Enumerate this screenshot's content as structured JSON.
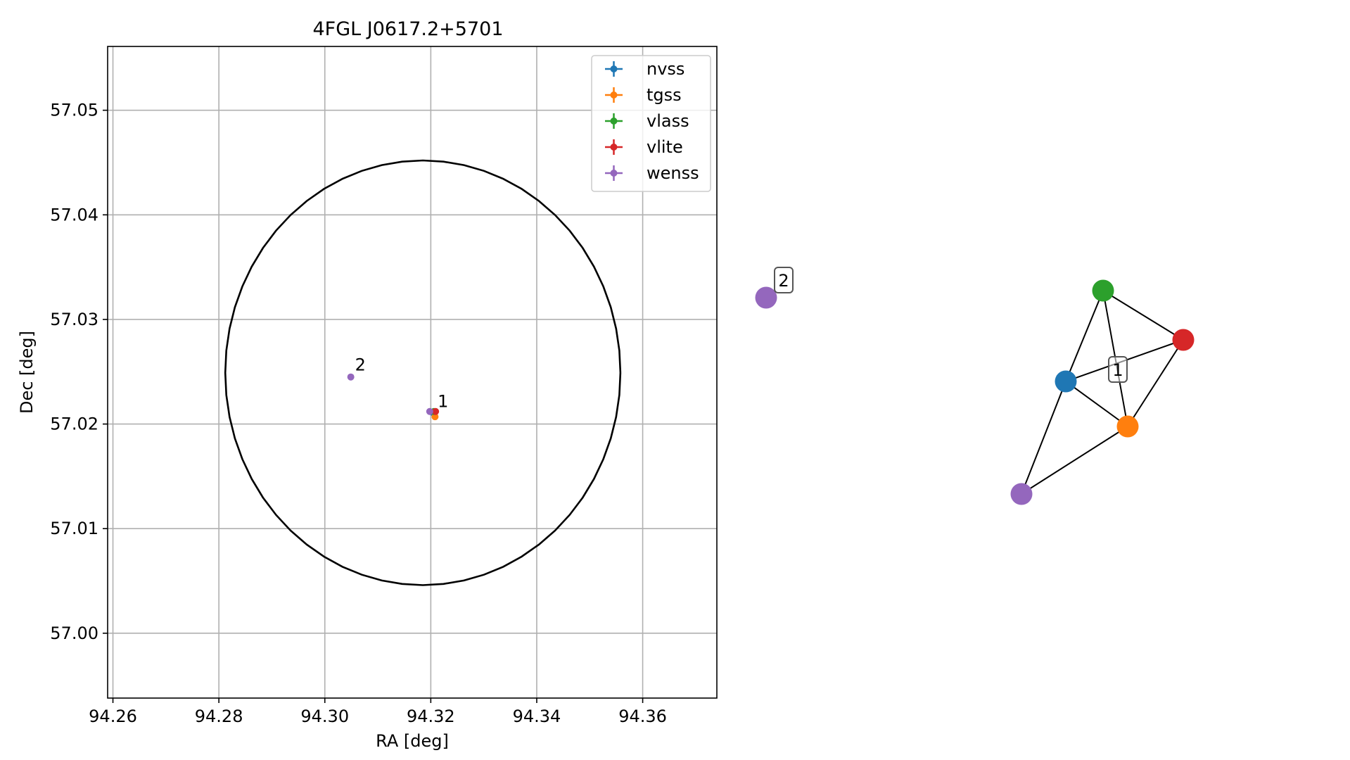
{
  "chart_data": [
    {
      "type": "scatter",
      "title": "4FGL J0617.2+5701",
      "xlabel": "RA [deg]",
      "ylabel": "Dec [deg]",
      "xlim": [
        94.259,
        94.374
      ],
      "ylim": [
        56.9938,
        57.0561
      ],
      "xticks": [
        94.26,
        94.28,
        94.3,
        94.32,
        94.34,
        94.36
      ],
      "xtick_labels": [
        "94.26",
        "94.28",
        "94.30",
        "94.32",
        "94.34",
        "94.36"
      ],
      "yticks": [
        57.0,
        57.01,
        57.02,
        57.03,
        57.04,
        57.05
      ],
      "ytick_labels": [
        "57.00",
        "57.01",
        "57.02",
        "57.03",
        "57.04",
        "57.05"
      ],
      "grid": true,
      "legend_position": "top-right",
      "series": [
        {
          "name": "nvss",
          "color": "#1f77b4",
          "points": [
            {
              "x": 94.3204,
              "y": 57.0211
            }
          ]
        },
        {
          "name": "tgss",
          "color": "#ff7f0e",
          "points": [
            {
              "x": 94.3208,
              "y": 57.0207
            }
          ]
        },
        {
          "name": "vlass",
          "color": "#2ca02c",
          "points": [
            {
              "x": 94.3206,
              "y": 57.0212
            }
          ]
        },
        {
          "name": "vlite",
          "color": "#d62728",
          "points": [
            {
              "x": 94.3209,
              "y": 57.0212
            }
          ]
        },
        {
          "name": "wenss",
          "color": "#9467bd",
          "points": [
            {
              "x": 94.3049,
              "y": 57.0245
            },
            {
              "x": 94.3198,
              "y": 57.0212
            }
          ]
        }
      ],
      "source_labels": [
        {
          "text": "1",
          "x": 94.3205,
          "y": 57.021
        },
        {
          "text": "2",
          "x": 94.3049,
          "y": 57.0245
        }
      ],
      "circle": {
        "center_x": 94.3185,
        "center_y": 57.0249,
        "radius_dec": 0.0203,
        "color": "#000000"
      }
    },
    {
      "type": "network",
      "nodes": [
        {
          "id": "nvss",
          "color": "#1f77b4"
        },
        {
          "id": "tgss",
          "color": "#ff7f0e"
        },
        {
          "id": "vlass",
          "color": "#2ca02c"
        },
        {
          "id": "vlite",
          "color": "#d62728"
        },
        {
          "id": "wenss-1",
          "color": "#9467bd"
        },
        {
          "id": "wenss-2",
          "color": "#9467bd"
        }
      ],
      "edges": [
        [
          "nvss",
          "tgss"
        ],
        [
          "nvss",
          "vlass"
        ],
        [
          "nvss",
          "vlite"
        ],
        [
          "nvss",
          "wenss-1"
        ],
        [
          "tgss",
          "vlass"
        ],
        [
          "tgss",
          "vlite"
        ],
        [
          "tgss",
          "wenss-1"
        ],
        [
          "vlass",
          "vlite"
        ]
      ],
      "group_labels": [
        {
          "text": "1"
        },
        {
          "text": "2"
        }
      ]
    }
  ]
}
